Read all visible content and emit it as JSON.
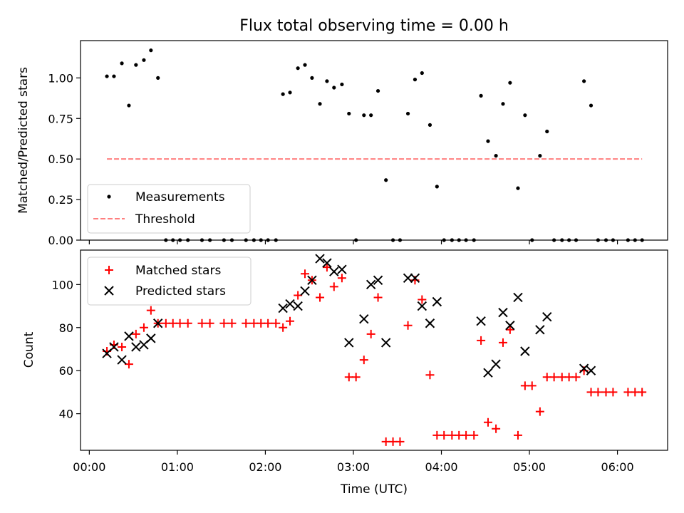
{
  "chart_data": [
    {
      "type": "scatter",
      "title": "Flux total observing time = 0.00 h",
      "ylabel": "Matched/Predicted stars",
      "ylim": [
        0,
        1.23
      ],
      "yticks": [
        "0.00",
        "0.25",
        "0.50",
        "0.75",
        "1.00"
      ],
      "xlim": [
        -0.1,
        6.57
      ],
      "legend": "lower-left",
      "series": [
        {
          "name": "Measurements",
          "marker": "dot",
          "color": "#000000",
          "x": [
            0.2,
            0.28,
            0.37,
            0.45,
            0.53,
            0.62,
            0.7,
            0.78,
            0.87,
            0.95,
            1.03,
            1.12,
            1.28,
            1.37,
            1.53,
            1.62,
            1.78,
            1.87,
            1.95,
            2.03,
            2.12,
            2.2,
            2.28,
            2.37,
            2.45,
            2.53,
            2.62,
            2.7,
            2.78,
            2.87,
            2.95,
            3.03,
            3.12,
            3.2,
            3.28,
            3.37,
            3.45,
            3.53,
            3.62,
            3.7,
            3.78,
            3.87,
            3.95,
            4.03,
            4.12,
            4.2,
            4.28,
            4.37,
            4.45,
            4.53,
            4.62,
            4.7,
            4.78,
            4.87,
            4.95,
            5.03,
            5.12,
            5.2,
            5.28,
            5.37,
            5.45,
            5.53,
            5.62,
            5.7,
            5.78,
            5.87,
            5.95,
            6.12,
            6.2,
            6.28
          ],
          "y": [
            1.01,
            1.01,
            1.09,
            0.83,
            1.08,
            1.11,
            1.17,
            1.0,
            0.0,
            0.0,
            0.0,
            0.0,
            0.0,
            0.0,
            0.0,
            0.0,
            0.0,
            0.0,
            0.0,
            0.0,
            0.0,
            0.9,
            0.91,
            1.06,
            1.08,
            1.0,
            0.84,
            0.98,
            0.94,
            0.96,
            0.78,
            0.0,
            0.77,
            0.77,
            0.92,
            0.37,
            0.0,
            0.0,
            0.78,
            0.99,
            1.03,
            0.71,
            0.33,
            0.0,
            0.0,
            0.0,
            0.0,
            0.0,
            0.89,
            0.61,
            0.52,
            0.84,
            0.97,
            0.32,
            0.77,
            0.0,
            0.52,
            0.67,
            0.0,
            0.0,
            0.0,
            0.0,
            0.98,
            0.83,
            0.0,
            0.0,
            0.0,
            0.0,
            0.0,
            0.0
          ]
        },
        {
          "name": "Threshold",
          "marker": "dashed-line",
          "color": "#ff7f7f",
          "x": [
            0.2,
            6.28
          ],
          "y": [
            0.5,
            0.5
          ]
        }
      ]
    },
    {
      "type": "scatter",
      "xlabel": "Time (UTC)",
      "ylabel": "Count",
      "ylim": [
        23,
        116
      ],
      "yticks": [
        "40",
        "60",
        "80",
        "100"
      ],
      "xlim": [
        -0.1,
        6.57
      ],
      "xticks": [
        "00:00",
        "01:00",
        "02:00",
        "03:00",
        "04:00",
        "05:00",
        "06:00"
      ],
      "legend": "top-left",
      "series": [
        {
          "name": "Matched stars",
          "marker": "plus",
          "color": "#ff0000",
          "x": [
            0.2,
            0.28,
            0.37,
            0.45,
            0.53,
            0.62,
            0.7,
            0.78,
            0.87,
            0.95,
            1.03,
            1.12,
            1.28,
            1.37,
            1.53,
            1.62,
            1.78,
            1.87,
            1.95,
            2.03,
            2.12,
            2.2,
            2.28,
            2.37,
            2.45,
            2.53,
            2.62,
            2.7,
            2.78,
            2.87,
            2.95,
            3.03,
            3.12,
            3.2,
            3.28,
            3.37,
            3.45,
            3.53,
            3.62,
            3.7,
            3.78,
            3.87,
            3.95,
            4.03,
            4.12,
            4.2,
            4.28,
            4.37,
            4.45,
            4.53,
            4.62,
            4.7,
            4.78,
            4.87,
            4.95,
            5.03,
            5.12,
            5.2,
            5.28,
            5.37,
            5.45,
            5.53,
            5.62,
            5.7,
            5.78,
            5.87,
            5.95,
            6.12,
            6.2,
            6.28
          ],
          "y": [
            69,
            72,
            71,
            63,
            77,
            80,
            88,
            82,
            82,
            82,
            82,
            82,
            82,
            82,
            82,
            82,
            82,
            82,
            82,
            82,
            82,
            80,
            83,
            95,
            105,
            102,
            94,
            108,
            99,
            103,
            57,
            57,
            65,
            77,
            94,
            27,
            27,
            27,
            81,
            102,
            93,
            58,
            30,
            30,
            30,
            30,
            30,
            30,
            74,
            36,
            33,
            73,
            79,
            30,
            53,
            53,
            41,
            57,
            57,
            57,
            57,
            57,
            60,
            50,
            50,
            50,
            50,
            50,
            50,
            50
          ]
        },
        {
          "name": "Predicted stars",
          "marker": "x",
          "color": "#000000",
          "x": [
            0.2,
            0.28,
            0.37,
            0.45,
            0.53,
            0.62,
            0.7,
            0.78,
            2.2,
            2.28,
            2.37,
            2.45,
            2.53,
            2.62,
            2.7,
            2.78,
            2.87,
            2.95,
            3.12,
            3.2,
            3.28,
            3.37,
            3.62,
            3.7,
            3.78,
            3.87,
            3.95,
            4.45,
            4.53,
            4.62,
            4.7,
            4.78,
            4.87,
            4.95,
            5.12,
            5.2,
            5.62,
            5.7
          ],
          "y": [
            68,
            71,
            65,
            76,
            71,
            72,
            75,
            82,
            89,
            91,
            90,
            97,
            102,
            112,
            110,
            106,
            107,
            73,
            84,
            100,
            102,
            73,
            103,
            103,
            90,
            82,
            92,
            83,
            59,
            63,
            87,
            81,
            94,
            69,
            79,
            85,
            61,
            60
          ]
        }
      ]
    }
  ]
}
